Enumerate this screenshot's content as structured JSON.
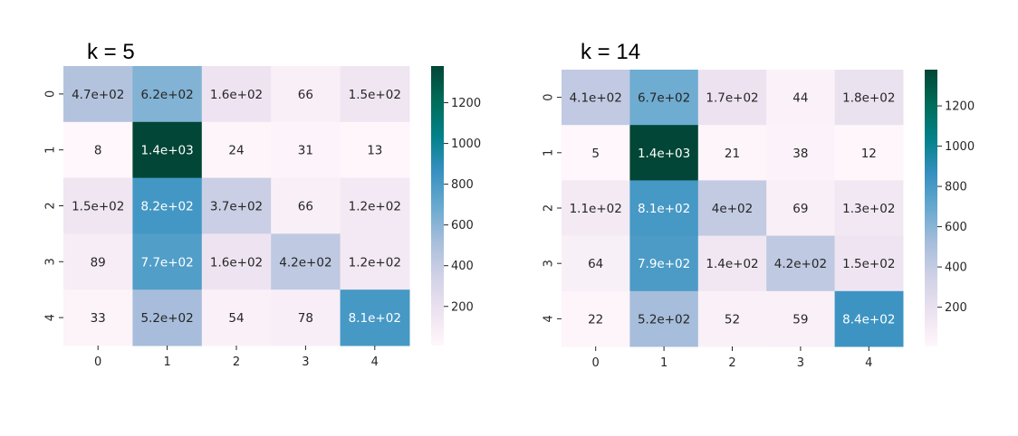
{
  "chart_data": [
    {
      "type": "heatmap",
      "title": "k = 5",
      "x_categories": [
        "0",
        "1",
        "2",
        "3",
        "4"
      ],
      "y_categories": [
        "0",
        "1",
        "2",
        "3",
        "4"
      ],
      "values": [
        [
          470,
          620,
          160,
          66,
          150
        ],
        [
          8,
          1400,
          24,
          31,
          13
        ],
        [
          150,
          820,
          370,
          66,
          120
        ],
        [
          89,
          770,
          160,
          420,
          120
        ],
        [
          33,
          520,
          54,
          78,
          810
        ]
      ],
      "annotations": [
        [
          "4.7e+02",
          "6.2e+02",
          "1.6e+02",
          "66",
          "1.5e+02"
        ],
        [
          "8",
          "1.4e+03",
          "24",
          "31",
          "13"
        ],
        [
          "1.5e+02",
          "8.2e+02",
          "3.7e+02",
          "66",
          "1.2e+02"
        ],
        [
          "89",
          "7.7e+02",
          "1.6e+02",
          "4.2e+02",
          "1.2e+02"
        ],
        [
          "33",
          "5.2e+02",
          "54",
          "78",
          "8.1e+02"
        ]
      ],
      "colorbar": {
        "ticks": [
          "200",
          "400",
          "600",
          "800",
          "1000",
          "1200"
        ],
        "tick_values": [
          200,
          400,
          600,
          800,
          1000,
          1200
        ],
        "vmin": 8,
        "vmax": 1380
      },
      "colormap": "PuBuGn"
    },
    {
      "type": "heatmap",
      "title": "k = 14",
      "x_categories": [
        "0",
        "1",
        "2",
        "3",
        "4"
      ],
      "y_categories": [
        "0",
        "1",
        "2",
        "3",
        "4"
      ],
      "values": [
        [
          410,
          670,
          170,
          44,
          180
        ],
        [
          5,
          1400,
          21,
          38,
          12
        ],
        [
          110,
          810,
          400,
          69,
          130
        ],
        [
          64,
          790,
          140,
          420,
          150
        ],
        [
          22,
          520,
          52,
          59,
          840
        ]
      ],
      "annotations": [
        [
          "4.1e+02",
          "6.7e+02",
          "1.7e+02",
          "44",
          "1.8e+02"
        ],
        [
          "5",
          "1.4e+03",
          "21",
          "38",
          "12"
        ],
        [
          "1.1e+02",
          "8.1e+02",
          "4e+02",
          "69",
          "1.3e+02"
        ],
        [
          "64",
          "7.9e+02",
          "1.4e+02",
          "4.2e+02",
          "1.5e+02"
        ],
        [
          "22",
          "5.2e+02",
          "52",
          "59",
          "8.4e+02"
        ]
      ],
      "colorbar": {
        "ticks": [
          "200",
          "400",
          "600",
          "800",
          "1000",
          "1200"
        ],
        "tick_values": [
          200,
          400,
          600,
          800,
          1000,
          1200
        ],
        "vmin": 5,
        "vmax": 1380
      },
      "colormap": "PuBuGn"
    }
  ]
}
